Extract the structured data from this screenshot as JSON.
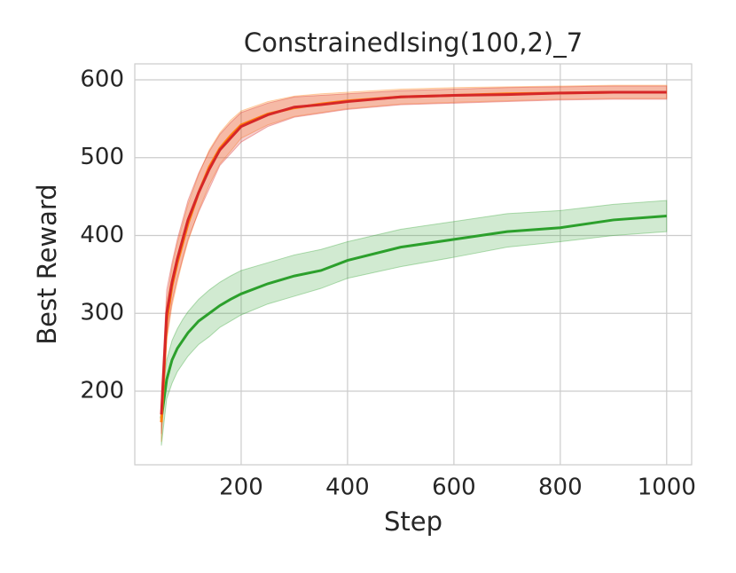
{
  "chart_data": {
    "type": "line",
    "title": "ConstrainedIsing(100,2)_7",
    "x_label": "Step",
    "y_label": "Best Reward",
    "x": [
      50,
      60,
      70,
      80,
      90,
      100,
      120,
      140,
      160,
      180,
      200,
      250,
      300,
      350,
      400,
      500,
      600,
      700,
      800,
      900,
      1000
    ],
    "series": [
      {
        "color": "#2ca02c",
        "values": [
          165,
          215,
          240,
          255,
          265,
          275,
          290,
          300,
          310,
          318,
          325,
          338,
          348,
          355,
          368,
          385,
          395,
          405,
          410,
          420,
          425
        ],
        "lower": [
          130,
          190,
          210,
          225,
          235,
          245,
          260,
          270,
          282,
          290,
          298,
          312,
          322,
          332,
          345,
          360,
          372,
          385,
          392,
          400,
          405
        ],
        "upper": [
          185,
          240,
          265,
          280,
          292,
          302,
          318,
          330,
          340,
          348,
          355,
          365,
          375,
          382,
          392,
          408,
          418,
          428,
          432,
          440,
          445
        ]
      },
      {
        "color": "#ff7f0e",
        "values": [
          160,
          290,
          335,
          365,
          390,
          415,
          455,
          488,
          512,
          528,
          542,
          556,
          564,
          569,
          573,
          578,
          580,
          582,
          583,
          584,
          584
        ],
        "lower": [
          135,
          265,
          310,
          340,
          368,
          392,
          432,
          465,
          492,
          508,
          525,
          542,
          553,
          558,
          563,
          569,
          571,
          573,
          575,
          576,
          576
        ],
        "upper": [
          185,
          315,
          360,
          390,
          415,
          440,
          478,
          510,
          532,
          548,
          560,
          572,
          579,
          582,
          584,
          588,
          590,
          591,
          592,
          593,
          593
        ]
      },
      {
        "color": "#d62728",
        "values": [
          170,
          300,
          340,
          370,
          395,
          420,
          455,
          485,
          510,
          525,
          540,
          555,
          565,
          568,
          572,
          578,
          580,
          581,
          583,
          584,
          584
        ],
        "lower": [
          145,
          270,
          315,
          345,
          370,
          395,
          430,
          460,
          490,
          505,
          520,
          540,
          552,
          557,
          562,
          568,
          570,
          572,
          574,
          575,
          575
        ],
        "upper": [
          195,
          330,
          365,
          395,
          420,
          445,
          480,
          508,
          530,
          545,
          558,
          570,
          578,
          580,
          582,
          586,
          588,
          590,
          591,
          592,
          592
        ]
      }
    ],
    "xlim": [
      0,
      1047
    ],
    "ylim": [
      105.4,
      620.5
    ],
    "xticks": [
      200,
      400,
      600,
      800,
      1000
    ],
    "yticks": [
      200,
      300,
      400,
      500,
      600
    ],
    "grid": true
  }
}
